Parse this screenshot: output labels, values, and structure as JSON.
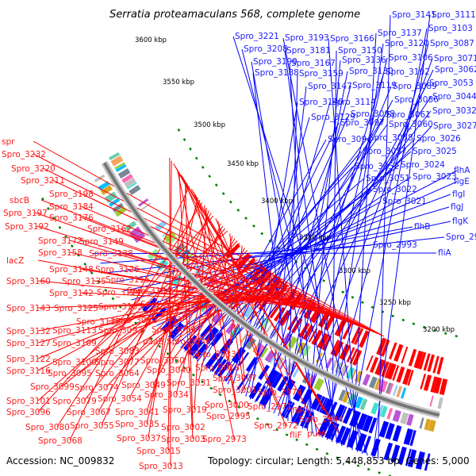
{
  "title": "Serratia proteamaculans 568, complete genome",
  "accession": "Accession: NC_009832",
  "summary": "Topology: circular; Length: 5,448,853 bp; Genes: 5,000",
  "colors": {
    "forward": "#0000ff",
    "reverse": "#ff0000",
    "backbone": "#777777",
    "marker": "#008000"
  },
  "kbp_markers": [
    "3600 kbp",
    "3550 kbp",
    "3500 kbp",
    "3450 kbp",
    "3400 kbp",
    "3350 kbp",
    "3300 kbp",
    "3250 kbp",
    "3200 kbp"
  ],
  "blue_labels": [
    "Spro_3141",
    "Spro_3111",
    "Spro_3221",
    "Spro_3193",
    "Spro_3166",
    "Spro_3137",
    "Spro_3103",
    "Spro_3208",
    "Spro_3181",
    "Spro_3150",
    "Spro_3120",
    "Spro_3087",
    "Spro_3199",
    "Spro_3167",
    "Spro_3136",
    "Spro_3106",
    "Spro_3071",
    "Spro_3188",
    "Spro_3159",
    "Spro_3130",
    "Spro_3102",
    "Spro_3062",
    "Spro_3147",
    "Spro_3119",
    "Spro_3089",
    "Spro_3053",
    "Spro_3140",
    "Spro_3114",
    "Spro_3086",
    "Spro_3044",
    "Spro_3129",
    "Spro_3098",
    "Spro_3061",
    "Spro_3032",
    "Spro_3097",
    "Spro_3060",
    "Spro_3027",
    "Spro_3094",
    "Spro_3058",
    "Spro_3026",
    "Spro_3057",
    "Spro_3025",
    "Spro_3052",
    "Spro_3024",
    "Spro_3051",
    "Spro_3023",
    "Spro_3022",
    "Spro_3021",
    "flhA",
    "flgE",
    "flgI",
    "flgJ",
    "flgK",
    "flhB",
    "Spro_2960",
    "Spro_2993",
    "fliA"
  ],
  "red_labels": [
    "spr",
    "Spro_3232",
    "Spro_3220",
    "Spro_3211",
    "sbcB",
    "Spro_3198",
    "Spro_3184",
    "Spro_3197",
    "Spro_3176",
    "Spro_3192",
    "Spro_3162",
    "Spro_3172",
    "Spro_3149",
    "Spro_3158",
    "Spro_3138",
    "lacZ",
    "Spro_3148",
    "Spro_3126",
    "Spro_3160",
    "Spro_3135",
    "Spro_3115",
    "Spro_3142",
    "Spro_3124",
    "Spro_3104",
    "Spro_3143",
    "Spro_3125",
    "Spro_3105",
    "Spro_3084",
    "Spro_3117",
    "Spro_3092",
    "paaA",
    "Spro_3132",
    "Spro_3113",
    "Spro_3093",
    "Spro_3059",
    "Spro_3127",
    "Spro_3109",
    "paaB",
    "Spro_3046",
    "Spro_3083",
    "Spro_3033",
    "Spro_3122",
    "Spro_3100",
    "Spro_3077",
    "Spro_3050",
    "Spro_3116",
    "Spro_3095",
    "Spro_3064",
    "Spro_3040",
    "Spro_3018",
    "Spro_3099",
    "Spro_3074",
    "Spro_3049",
    "Spro_3031",
    "Spro_3007",
    "Spro_3101",
    "Spro_3079",
    "Spro_3054",
    "Spro_3034",
    "Spro_3001",
    "Spro_2974",
    "Spro_3096",
    "Spro_3067",
    "Spro_3041",
    "Spro_3019",
    "Spro_3000",
    "Spro_3080",
    "Spro_3055",
    "Spro_3035",
    "Spro_2995",
    "Spro_2971",
    "fliR",
    "Spro_3068",
    "Spro_3037",
    "Spro_3002",
    "Spro_2972",
    "Spro_2944",
    "Spro_3003",
    "Spro_2973",
    "fliF",
    "putA",
    "Spro_3015",
    "Spro_3013"
  ]
}
